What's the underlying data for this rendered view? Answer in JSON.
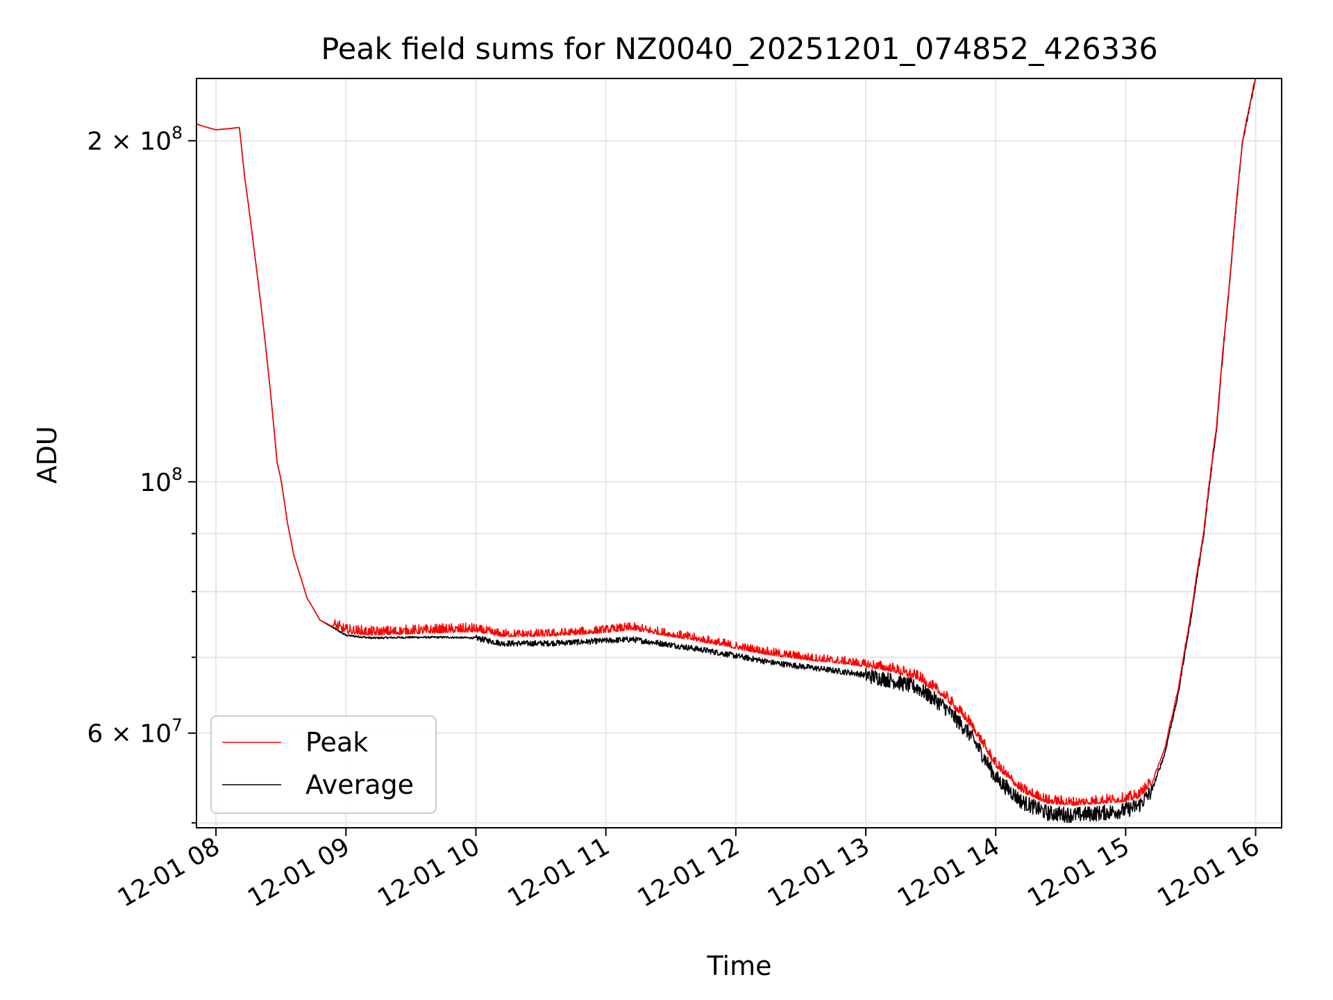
{
  "chart_data": {
    "type": "line",
    "title": "Peak field sums for NZ0040_20251201_074852_426336",
    "xlabel": "Time",
    "ylabel": "ADU",
    "yscale": "log",
    "grid": true,
    "legend_position": "lower-left",
    "xlim_hours": [
      7.85,
      16.2
    ],
    "ylim": [
      49500000,
      227000000
    ],
    "x_ticks": [
      {
        "hour": 8,
        "label": "12-01 08"
      },
      {
        "hour": 9,
        "label": "12-01 09"
      },
      {
        "hour": 10,
        "label": "12-01 10"
      },
      {
        "hour": 11,
        "label": "12-01 11"
      },
      {
        "hour": 12,
        "label": "12-01 12"
      },
      {
        "hour": 13,
        "label": "12-01 13"
      },
      {
        "hour": 14,
        "label": "12-01 14"
      },
      {
        "hour": 15,
        "label": "12-01 15"
      },
      {
        "hour": 16,
        "label": "12-01 16"
      }
    ],
    "y_major_ticks": [
      {
        "value": 60000000,
        "base": "6 × 10",
        "exp": "7"
      },
      {
        "value": 100000000,
        "base": "10",
        "exp": "8"
      },
      {
        "value": 200000000,
        "base": "2 × 10",
        "exp": "8"
      }
    ],
    "y_minor_ticks": [
      50000000,
      70000000,
      80000000,
      90000000
    ],
    "series": [
      {
        "name": "Peak",
        "color": "#ff0000",
        "x_hours": [
          7.85,
          7.9,
          8.0,
          8.1,
          8.18,
          8.22,
          8.3,
          8.4,
          8.47,
          8.5,
          8.55,
          8.6,
          8.7,
          8.8,
          9.0,
          9.2,
          9.5,
          9.8,
          10.0,
          10.2,
          10.5,
          10.8,
          11.0,
          11.2,
          11.5,
          11.8,
          12.0,
          12.3,
          12.6,
          12.9,
          13.0,
          13.2,
          13.4,
          13.6,
          13.8,
          13.9,
          14.0,
          14.2,
          14.4,
          14.6,
          14.8,
          15.0,
          15.1,
          15.2,
          15.3,
          15.4,
          15.5,
          15.6,
          15.7,
          15.8,
          15.9,
          16.0
        ],
        "values": [
          207000000,
          206000000,
          204500000,
          205000000,
          205500000,
          186000000,
          158000000,
          126000000,
          104000000,
          100500000,
          92000000,
          86000000,
          79000000,
          75500000,
          73500000,
          73200000,
          73400000,
          73600000,
          73700000,
          73000000,
          73000000,
          73300000,
          73600000,
          74000000,
          73000000,
          72000000,
          71200000,
          70200000,
          69500000,
          68900000,
          68600000,
          68000000,
          66900000,
          64500000,
          61000000,
          58500000,
          56000000,
          53200000,
          52000000,
          51800000,
          52000000,
          52200000,
          52600000,
          54000000,
          58000000,
          65000000,
          76000000,
          90000000,
          112000000,
          150000000,
          200000000,
          227000000
        ]
      },
      {
        "name": "Average",
        "color": "#000000",
        "x_hours": [
          7.85,
          7.9,
          8.0,
          8.1,
          8.18,
          8.22,
          8.3,
          8.4,
          8.47,
          8.5,
          8.55,
          8.6,
          8.7,
          8.8,
          9.0,
          9.2,
          9.5,
          9.8,
          10.0,
          10.2,
          10.5,
          10.8,
          11.0,
          11.2,
          11.5,
          11.8,
          12.0,
          12.3,
          12.6,
          12.9,
          13.0,
          13.2,
          13.4,
          13.6,
          13.8,
          13.9,
          14.0,
          14.2,
          14.4,
          14.6,
          14.8,
          15.0,
          15.1,
          15.2,
          15.3,
          15.4,
          15.5,
          15.6,
          15.7,
          15.8,
          15.9,
          16.0
        ],
        "values": [
          207000000,
          206000000,
          204500000,
          205000000,
          205500000,
          186000000,
          158000000,
          126000000,
          104000000,
          100500000,
          92000000,
          86000000,
          79000000,
          75500000,
          73200000,
          72800000,
          72900000,
          72900000,
          72800000,
          72000000,
          72000000,
          72200000,
          72400000,
          72600000,
          71800000,
          70900000,
          70200000,
          69200000,
          68500000,
          67800000,
          67500000,
          66800000,
          65800000,
          63400000,
          59900000,
          57400000,
          54800000,
          52200000,
          51000000,
          50800000,
          51000000,
          51300000,
          51800000,
          53300000,
          57500000,
          64500000,
          75500000,
          89500000,
          111500000,
          149500000,
          199500000,
          227000000
        ]
      }
    ]
  }
}
